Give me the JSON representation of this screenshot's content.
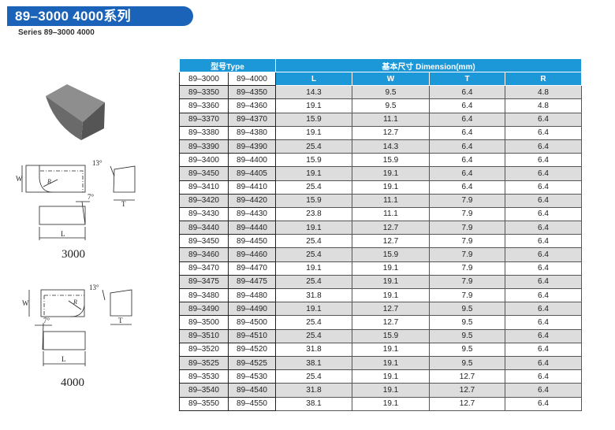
{
  "header": {
    "title": "89–3000  4000系列",
    "subtitle": "Series 89–3000 4000"
  },
  "drawings": {
    "series_3000": {
      "label": "3000",
      "w": "W",
      "r": "R",
      "l": "L",
      "t": "T",
      "angle_top": "13°",
      "angle_side": "7°"
    },
    "series_4000": {
      "label": "4000",
      "w": "W",
      "r": "R",
      "l": "L",
      "t": "T",
      "angle_top": "13°",
      "angle_side": "7°"
    }
  },
  "colors": {
    "title_bar": "#1a63b8",
    "table_header": "#1c98d8",
    "row_alt": "#dddddd"
  },
  "table": {
    "type_header": "型号Type",
    "dimension_header": "基本尺寸  Dimension(mm)",
    "type_columns": [
      "89–3000",
      "89–4000"
    ],
    "dim_columns": [
      "L",
      "W",
      "T",
      "R"
    ],
    "rows": [
      [
        "89–3350",
        "89–4350",
        "14.3",
        "9.5",
        "6.4",
        "4.8"
      ],
      [
        "89–3360",
        "89–4360",
        "19.1",
        "9.5",
        "6.4",
        "4.8"
      ],
      [
        "89–3370",
        "89–4370",
        "15.9",
        "11.1",
        "6.4",
        "6.4"
      ],
      [
        "89–3380",
        "89–4380",
        "19.1",
        "12.7",
        "6.4",
        "6.4"
      ],
      [
        "89–3390",
        "89–4390",
        "25.4",
        "14.3",
        "6.4",
        "6.4"
      ],
      [
        "89–3400",
        "89–4400",
        "15.9",
        "15.9",
        "6.4",
        "6.4"
      ],
      [
        "89–3450",
        "89–4405",
        "19.1",
        "19.1",
        "6.4",
        "6.4"
      ],
      [
        "89–3410",
        "89–4410",
        "25.4",
        "19.1",
        "6.4",
        "6.4"
      ],
      [
        "89–3420",
        "89–4420",
        "15.9",
        "11.1",
        "7.9",
        "6.4"
      ],
      [
        "89–3430",
        "89–4430",
        "23.8",
        "11.1",
        "7.9",
        "6.4"
      ],
      [
        "89–3440",
        "89–4440",
        "19.1",
        "12.7",
        "7.9",
        "6.4"
      ],
      [
        "89–3450",
        "89–4450",
        "25.4",
        "12.7",
        "7.9",
        "6.4"
      ],
      [
        "89–3460",
        "89–4460",
        "25.4",
        "15.9",
        "7.9",
        "6.4"
      ],
      [
        "89–3470",
        "89–4470",
        "19.1",
        "19.1",
        "7.9",
        "6.4"
      ],
      [
        "89–3475",
        "89–4475",
        "25.4",
        "19.1",
        "7.9",
        "6.4"
      ],
      [
        "89–3480",
        "89–4480",
        "31.8",
        "19.1",
        "7.9",
        "6.4"
      ],
      [
        "89–3490",
        "89–4490",
        "19.1",
        "12.7",
        "9.5",
        "6.4"
      ],
      [
        "89–3500",
        "89–4500",
        "25.4",
        "12.7",
        "9.5",
        "6.4"
      ],
      [
        "89–3510",
        "89–4510",
        "25.4",
        "15.9",
        "9.5",
        "6.4"
      ],
      [
        "89–3520",
        "89–4520",
        "31.8",
        "19.1",
        "9.5",
        "6.4"
      ],
      [
        "89–3525",
        "89–4525",
        "38.1",
        "19.1",
        "9.5",
        "6.4"
      ],
      [
        "89–3530",
        "89–4530",
        "25.4",
        "19.1",
        "12.7",
        "6.4"
      ],
      [
        "89–3540",
        "89–4540",
        "31.8",
        "19.1",
        "12.7",
        "6.4"
      ],
      [
        "89–3550",
        "89–4550",
        "38.1",
        "19.1",
        "12.7",
        "6.4"
      ]
    ]
  }
}
